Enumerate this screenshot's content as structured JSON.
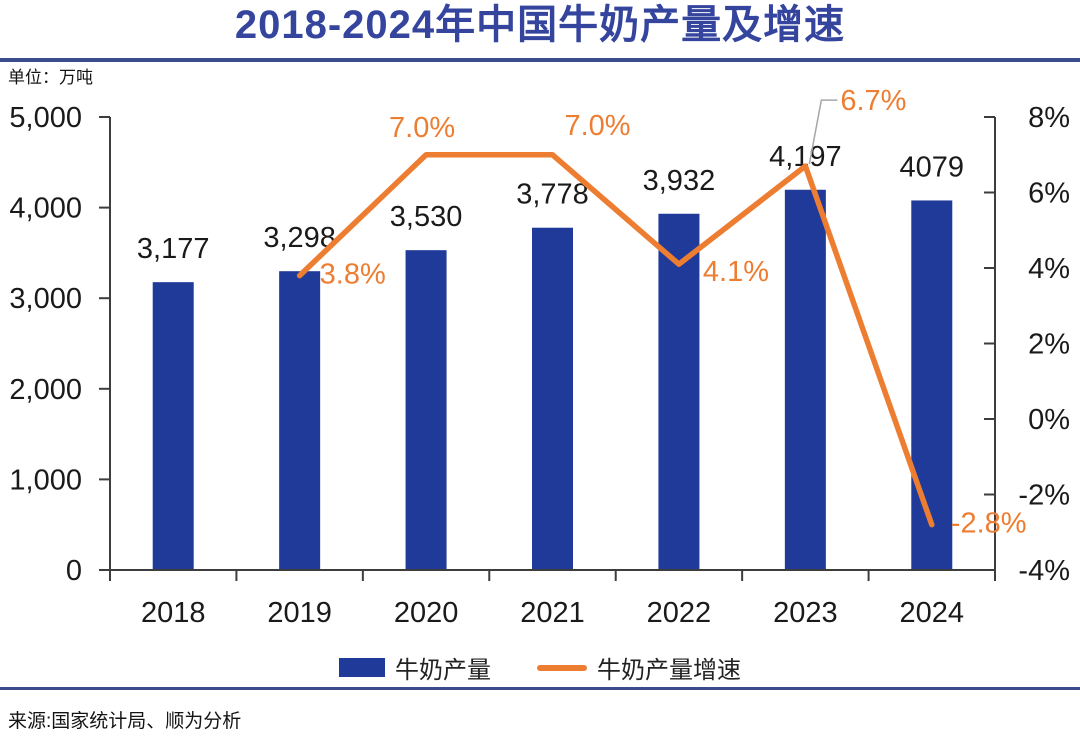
{
  "title": "2018-2024年中国牛奶产量及增速",
  "unit_label": "单位：万吨",
  "source": "来源:国家统计局、顺为分析",
  "legend": [
    {
      "label": "牛奶产量",
      "type": "bar"
    },
    {
      "label": "牛奶产量增速",
      "type": "line"
    }
  ],
  "colors": {
    "bar": "#1F3A99",
    "line": "#ED7D31",
    "title": "#35459E",
    "divider": "#3A4C8C",
    "axis": "#3D3D3D",
    "text": "#1A1A1A",
    "leader": "#A6A6A6"
  },
  "chart_data": {
    "type": "bar+line",
    "title": "2018-2024年中国牛奶产量及增速",
    "categories": [
      "2018",
      "2019",
      "2020",
      "2021",
      "2022",
      "2023",
      "2024"
    ],
    "series": [
      {
        "name": "牛奶产量",
        "type": "bar",
        "axis": "left",
        "values": [
          3177,
          3298,
          3530,
          3778,
          3932,
          4197,
          4079
        ],
        "labels": [
          "3,177",
          "3,298",
          "3,530",
          "3,778",
          "3,932",
          "4,197",
          "4079"
        ]
      },
      {
        "name": "牛奶产量增速",
        "type": "line",
        "axis": "right",
        "values": [
          null,
          3.8,
          7.0,
          7.0,
          4.1,
          6.7,
          -2.8
        ],
        "labels": [
          "",
          "3.8%",
          "7.0%",
          "7.0%",
          "4.1%",
          "6.7%",
          "-2.8%"
        ]
      }
    ],
    "left_axis": {
      "min": 0,
      "max": 5000,
      "step": 1000,
      "tick_labels": [
        "0",
        "1,000",
        "2,000",
        "3,000",
        "4,000",
        "5,000"
      ]
    },
    "right_axis": {
      "min": -4,
      "max": 8,
      "step": 2,
      "tick_labels": [
        "-4%",
        "-2%",
        "0%",
        "2%",
        "4%",
        "6%",
        "8%"
      ]
    },
    "grid": false,
    "legend_position": "bottom"
  }
}
